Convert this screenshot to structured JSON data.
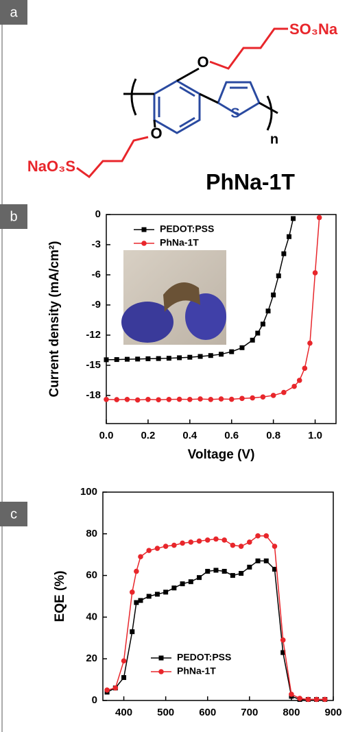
{
  "panels": [
    "a",
    "b",
    "c"
  ],
  "structure": {
    "labels": [
      "O",
      "SO₃Na",
      "O",
      "NaO₃S",
      "S",
      "n"
    ],
    "name": "PhNa-1T"
  },
  "chart_data": [
    {
      "type": "line",
      "xlabel": "Voltage (V)",
      "ylabel": "Current density (mA/cm²)",
      "xlim": [
        0,
        1.1
      ],
      "ylim": [
        -20.8,
        0
      ],
      "xticks": [
        {
          "value": 0,
          "label": "0.0"
        },
        {
          "value": 0.2,
          "label": "0.2"
        },
        {
          "value": 0.4,
          "label": "0.4"
        },
        {
          "value": 0.6,
          "label": "0.6"
        },
        {
          "value": 0.8,
          "label": "0.8"
        },
        {
          "value": 1,
          "label": "1.0"
        }
      ],
      "yticks": [
        0,
        -3,
        -6,
        -9,
        -12,
        -15,
        -18
      ],
      "legend": "upper left",
      "series": [
        {
          "name": "PEDOT:PSS",
          "color": "#000000",
          "marker": "square",
          "x": [
            0,
            0.05,
            0.1,
            0.15,
            0.2,
            0.25,
            0.3,
            0.35,
            0.4,
            0.45,
            0.5,
            0.55,
            0.6,
            0.65,
            0.7,
            0.725,
            0.75,
            0.775,
            0.8,
            0.825,
            0.85,
            0.875,
            0.895
          ],
          "values": [
            -14.45,
            -14.43,
            -14.4,
            -14.38,
            -14.35,
            -14.33,
            -14.3,
            -14.25,
            -14.2,
            -14.12,
            -14.03,
            -13.9,
            -13.65,
            -13.25,
            -12.5,
            -11.8,
            -10.9,
            -9.6,
            -8.0,
            -6.1,
            -3.9,
            -2.2,
            -0.4
          ]
        },
        {
          "name": "PhNa-1T",
          "color": "#e8262b",
          "marker": "circle",
          "x": [
            0,
            0.05,
            0.1,
            0.15,
            0.2,
            0.25,
            0.3,
            0.35,
            0.4,
            0.45,
            0.5,
            0.55,
            0.6,
            0.65,
            0.7,
            0.75,
            0.8,
            0.85,
            0.9,
            0.925,
            0.95,
            0.975,
            1.0,
            1.02
          ],
          "values": [
            -18.4,
            -18.42,
            -18.4,
            -18.45,
            -18.4,
            -18.43,
            -18.4,
            -18.38,
            -18.4,
            -18.35,
            -18.4,
            -18.35,
            -18.38,
            -18.3,
            -18.25,
            -18.15,
            -18.0,
            -17.7,
            -17.1,
            -16.5,
            -15.3,
            -12.8,
            -5.8,
            -0.3
          ]
        }
      ]
    },
    {
      "type": "line",
      "ylabel": "EQE (%)",
      "xlim": [
        350,
        900
      ],
      "ylim": [
        0,
        100
      ],
      "xticks": [
        400,
        500,
        600,
        700,
        800,
        900
      ],
      "yticks": [
        0,
        20,
        40,
        60,
        80,
        100
      ],
      "legend": "center",
      "x": [
        360,
        380,
        400,
        420,
        430,
        440,
        460,
        480,
        500,
        520,
        540,
        560,
        580,
        600,
        620,
        640,
        660,
        680,
        700,
        720,
        740,
        760,
        780,
        800,
        820,
        840,
        860,
        880
      ],
      "series": [
        {
          "name": "PEDOT:PSS",
          "color": "#000000",
          "marker": "square",
          "values": [
            4,
            6,
            11,
            33,
            47,
            48,
            50,
            51,
            52,
            54,
            56,
            57,
            59,
            62,
            62.5,
            62,
            60,
            61,
            64,
            67,
            67,
            63,
            23,
            2,
            0.5,
            0.5,
            0.5,
            0.5
          ]
        },
        {
          "name": "PhNa-1T",
          "color": "#e8262b",
          "marker": "circle",
          "values": [
            5,
            6,
            19,
            52,
            62,
            69,
            72,
            73,
            74,
            74.5,
            75.5,
            76,
            76.5,
            77,
            77.5,
            77,
            74.5,
            74,
            76,
            79,
            79,
            74,
            29,
            3,
            1,
            0.5,
            0.5,
            0.5
          ]
        }
      ]
    }
  ]
}
